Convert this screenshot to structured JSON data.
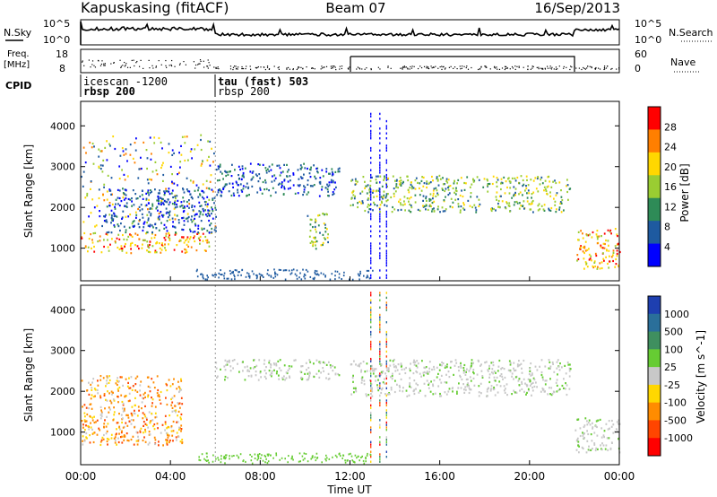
{
  "header": {
    "radar": "Kapuskasing (fitACF)",
    "beam": "Beam 07",
    "date": "16/Sep/2013"
  },
  "strips": {
    "nsky_label": "N.Sky",
    "nsearch_label": "N.Search",
    "noise_ticks": [
      "10^5",
      "10^0"
    ],
    "freq_label_1": "Freq.",
    "freq_label_2": "[MHz]",
    "freq_ticks": [
      "18",
      "8"
    ],
    "nave_label": "Nave",
    "nave_ticks": [
      "60",
      "0"
    ],
    "cpid_label": "CPID",
    "cpid_segments": [
      {
        "line1": "icescan -1200",
        "line2": "rbsp 200",
        "start_hour": 0
      },
      {
        "line1": "tau (fast) 503",
        "line2": "rbsp 200",
        "start_hour": 6
      }
    ]
  },
  "power_panel": {
    "ylabel": "Slant Range [km]",
    "colorbar_label": "Power [dB]",
    "colorbar_ticks": [
      "28",
      "24",
      "20",
      "16",
      "12",
      "8",
      "4"
    ],
    "colorbar_colors": [
      "#ff0000",
      "#ff7f00",
      "#ffd700",
      "#9acd32",
      "#2e8b57",
      "#1e5aa0",
      "#0000ff"
    ]
  },
  "velocity_panel": {
    "ylabel": "Slant Range [km]",
    "colorbar_label": "Velocity [m s^-1]",
    "colorbar_ticks": [
      "1000",
      "500",
      "100",
      "25",
      "-25",
      "-100",
      "-500",
      "-1000"
    ],
    "colorbar_colors": [
      "#1e3fb0",
      "#2a6f9a",
      "#3f8f5f",
      "#66cc33",
      "#c8c8c8",
      "#ffd700",
      "#ff8c00",
      "#ff4500",
      "#ff0000"
    ]
  },
  "x_axis": {
    "label": "Time UT",
    "ticks": [
      "00:00",
      "04:00",
      "08:00",
      "12:00",
      "16:00",
      "20:00",
      "00:00"
    ]
  },
  "y_axis_ticks": [
    "4000",
    "3000",
    "2000",
    "1000"
  ],
  "chart_data": {
    "type": "heatmap",
    "title": "Kapuskasing (fitACF)",
    "xlabel": "Time UT",
    "ylabel": "Slant Range [km]",
    "xlim_hours": [
      0,
      24
    ],
    "ylim_km": [
      200,
      4600
    ],
    "power_regions": [
      {
        "t0": 0.0,
        "t1": 5.8,
        "r0": 900,
        "r1": 1400,
        "level": "high"
      },
      {
        "t0": 0.0,
        "t1": 6.0,
        "r0": 1500,
        "r1": 3800,
        "level": "scattered"
      },
      {
        "t0": 1.0,
        "t1": 6.0,
        "r0": 1400,
        "r1": 2500,
        "level": "low"
      },
      {
        "t0": 6.0,
        "t1": 11.5,
        "r0": 2300,
        "r1": 3100,
        "level": "low"
      },
      {
        "t0": 10.0,
        "t1": 11.0,
        "r0": 1000,
        "r1": 1900,
        "level": "mid"
      },
      {
        "t0": 12.0,
        "t1": 21.8,
        "r0": 1900,
        "r1": 2800,
        "level": "mid"
      },
      {
        "t0": 22.0,
        "t1": 24.0,
        "r0": 500,
        "r1": 1500,
        "level": "high"
      }
    ],
    "velocity_regions": [
      {
        "t0": 0.0,
        "t1": 4.5,
        "r0": 700,
        "r1": 2400,
        "sign": "negative"
      },
      {
        "t0": 6.0,
        "t1": 11.5,
        "r0": 2300,
        "r1": 2800,
        "sign": "near-zero"
      },
      {
        "t0": 12.0,
        "t1": 21.8,
        "r0": 1900,
        "r1": 2800,
        "sign": "near-zero"
      },
      {
        "t0": 22.0,
        "t1": 24.0,
        "r0": 500,
        "r1": 1400,
        "sign": "near-zero"
      }
    ]
  }
}
